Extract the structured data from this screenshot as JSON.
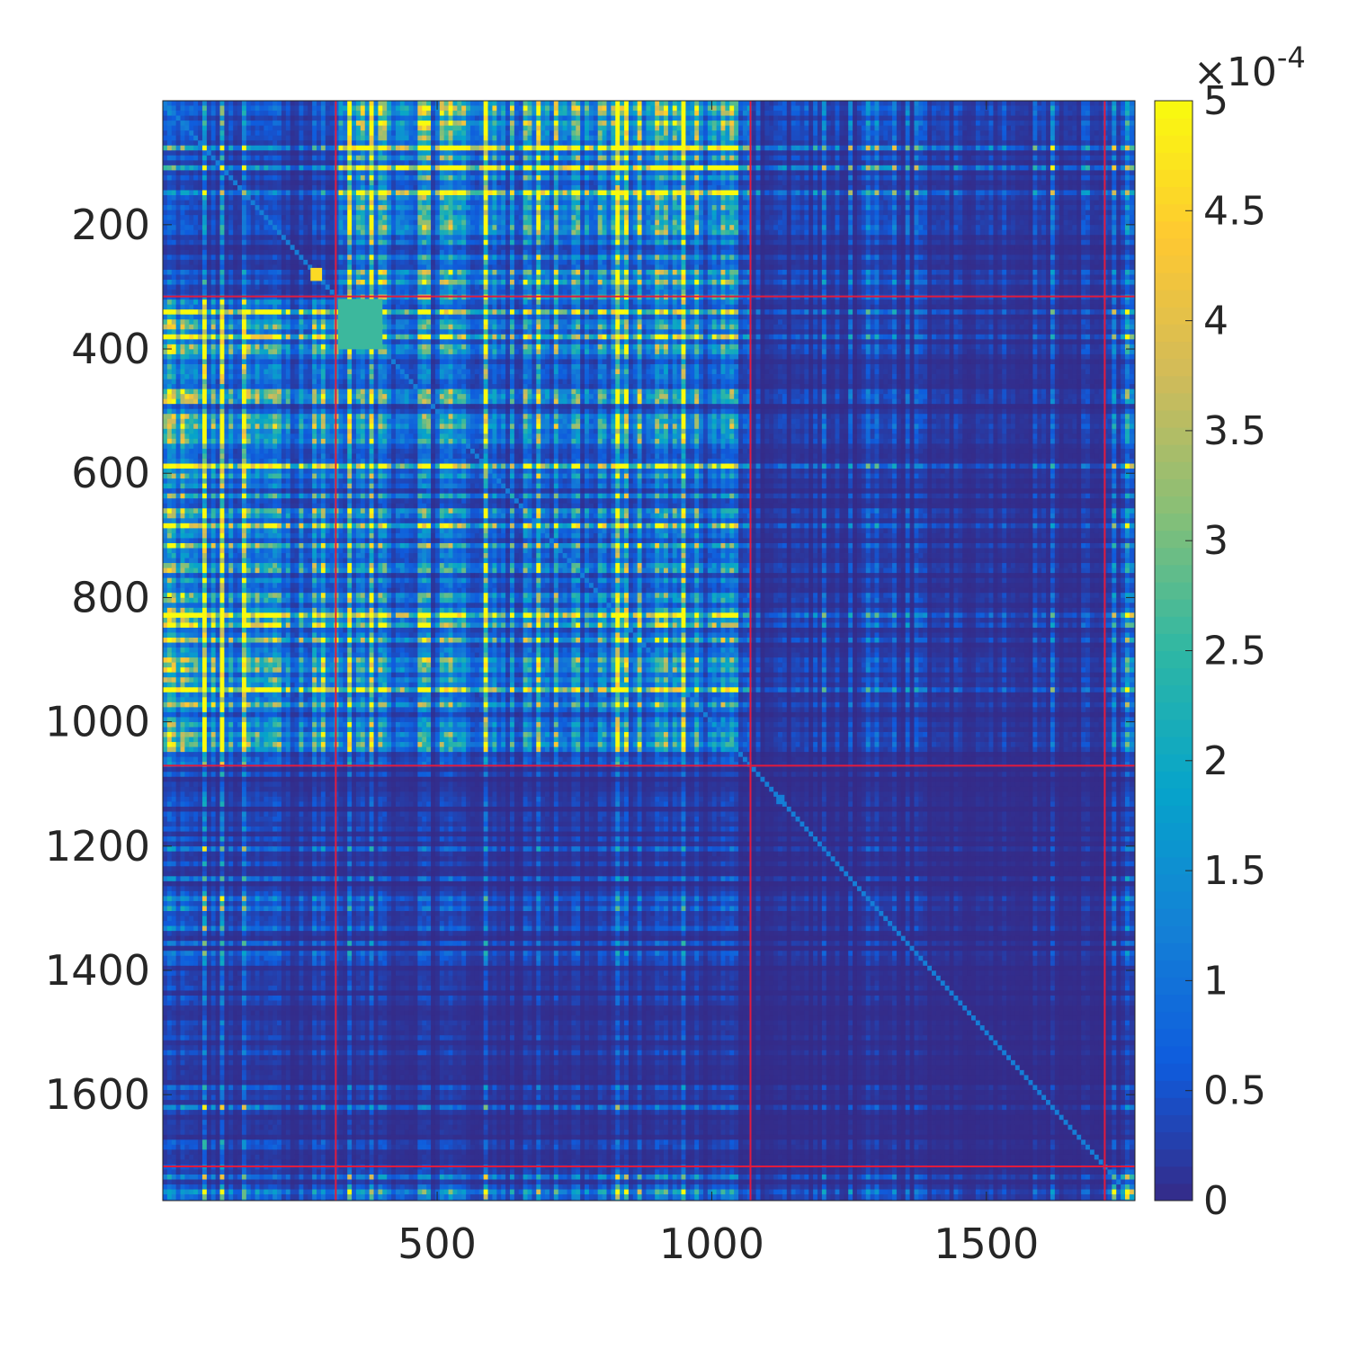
{
  "chart_data": {
    "type": "heatmap",
    "title": "",
    "xlabel": "",
    "ylabel": "",
    "matrix_size": 1770,
    "xlim": [
      0.5,
      1770.5
    ],
    "ylim": [
      0.5,
      1770.5
    ],
    "y_reversed": true,
    "x_ticks": [
      500,
      1000,
      1500
    ],
    "x_tick_labels": [
      "500",
      "1000",
      "1500"
    ],
    "y_ticks": [
      200,
      400,
      600,
      800,
      1000,
      1200,
      1400,
      1600
    ],
    "y_tick_labels": [
      "200",
      "400",
      "600",
      "800",
      "1000",
      "1200",
      "1400",
      "1600"
    ],
    "block_boundaries": [
      315,
      1070,
      1715
    ],
    "boundary_color": "#e31a3c",
    "blocks": [
      {
        "range": [
          1,
          315
        ],
        "name": ""
      },
      {
        "range": [
          316,
          1070
        ],
        "name": ""
      },
      {
        "range": [
          1071,
          1715
        ],
        "name": ""
      },
      {
        "range": [
          1716,
          1770
        ],
        "name": ""
      }
    ],
    "block_mean_levels": [
      [
        1.0,
        3.8,
        0.7,
        0.8
      ],
      [
        3.8,
        2.6,
        0.45,
        0.9
      ],
      [
        0.7,
        0.45,
        0.15,
        0.3
      ],
      [
        0.8,
        0.9,
        0.3,
        1.0
      ]
    ],
    "highlight_blocks": [
      {
        "rows": [
          320,
          400
        ],
        "cols": [
          320,
          400
        ],
        "value": 2.6
      },
      {
        "rows": [
          1118,
          1132
        ],
        "cols": [
          1118,
          1132
        ],
        "value": 1.2
      },
      {
        "rows": [
          270,
          290
        ],
        "cols": [
          270,
          290
        ],
        "value": 4.6
      }
    ],
    "colorbar": {
      "min": 0,
      "max": 5,
      "ticks": [
        0,
        0.5,
        1,
        1.5,
        2,
        2.5,
        3,
        3.5,
        4,
        4.5,
        5
      ],
      "tick_labels": [
        "0",
        "0.5",
        "1",
        "1.5",
        "2",
        "2.5",
        "3",
        "3.5",
        "4",
        "4.5",
        "5"
      ],
      "multiplier_label": "×10",
      "multiplier_exponent": "-4",
      "colormap": "parula",
      "colormap_stops": [
        "#352a87",
        "#0f5cdd",
        "#1481d6",
        "#06a4ca",
        "#2eb7a4",
        "#87bf77",
        "#d1bb59",
        "#fec832",
        "#f9fb0e"
      ]
    }
  }
}
